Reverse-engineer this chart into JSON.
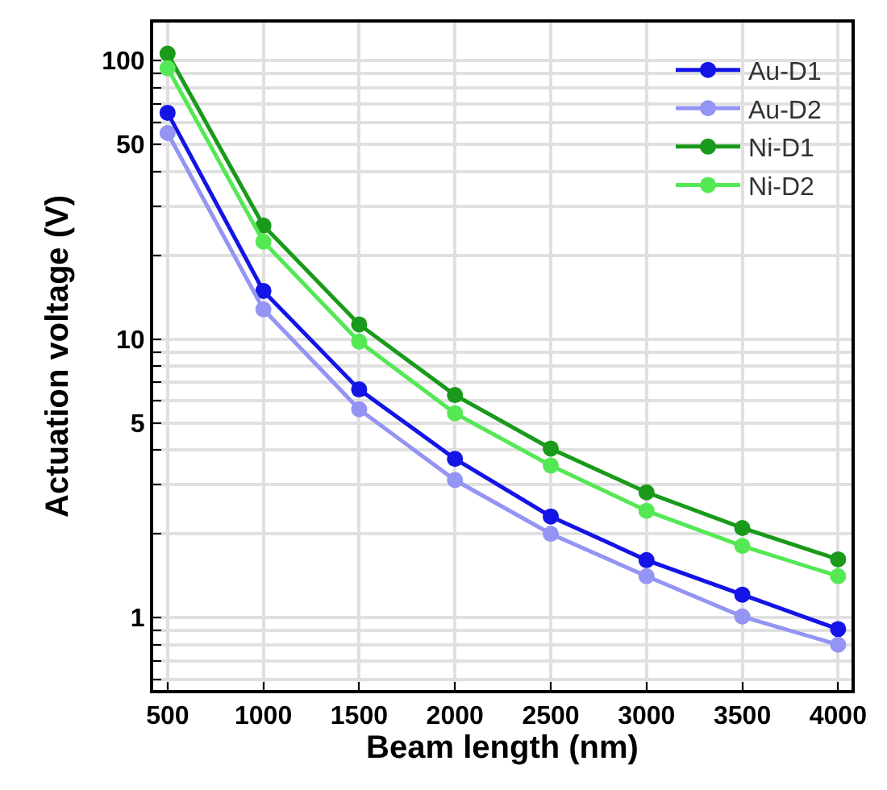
{
  "chart_data": {
    "type": "line",
    "xlabel": "Beam length (nm)",
    "ylabel": "Actuation voltage (V)",
    "log": "y",
    "grid": true,
    "legend": "top right",
    "marker": "circle",
    "line_style": "solid",
    "x": [
      500,
      1000,
      1500,
      2000,
      2500,
      3000,
      3500,
      4000
    ],
    "xlim": [
      425,
      4070
    ],
    "xticks": [
      500,
      1000,
      1500,
      2000,
      2500,
      3000,
      3500,
      4000
    ],
    "ylim": [
      0.55,
      137
    ],
    "yticks": [
      {
        "value": 0.6,
        "label": null
      },
      {
        "value": 0.7,
        "label": null
      },
      {
        "value": 0.8,
        "label": null
      },
      {
        "value": 0.9,
        "label": null
      },
      1,
      {
        "value": 2,
        "label": null
      },
      {
        "value": 3,
        "label": null
      },
      {
        "value": 4,
        "label": null
      },
      5,
      {
        "value": 6,
        "label": null
      },
      {
        "value": 7,
        "label": null
      },
      {
        "value": 8,
        "label": null
      },
      {
        "value": 9,
        "label": null
      },
      10,
      {
        "value": 20,
        "label": null
      },
      {
        "value": 30,
        "label": null
      },
      {
        "value": 40,
        "label": null
      },
      50,
      {
        "value": 60,
        "label": null
      },
      {
        "value": 70,
        "label": null
      },
      {
        "value": 80,
        "label": null
      },
      {
        "value": 90,
        "label": null
      },
      100
    ],
    "series": [
      {
        "name": "Au-D1",
        "color": "#1414e6",
        "values": [
          65,
          14.9,
          6.6,
          3.72,
          2.31,
          1.61,
          1.21,
          0.91
        ]
      },
      {
        "name": "Au-D2",
        "color": "#9494f4",
        "values": [
          55,
          12.8,
          5.6,
          3.12,
          2.0,
          1.41,
          1.01,
          0.8
        ]
      },
      {
        "name": "Ni-D1",
        "color": "#1a9a1a",
        "values": [
          106,
          25.6,
          11.3,
          6.3,
          4.05,
          2.82,
          2.1,
          1.62
        ]
      },
      {
        "name": "Ni-D2",
        "color": "#55e855",
        "values": [
          94,
          22.4,
          9.8,
          5.42,
          3.52,
          2.42,
          1.81,
          1.41
        ]
      }
    ]
  }
}
